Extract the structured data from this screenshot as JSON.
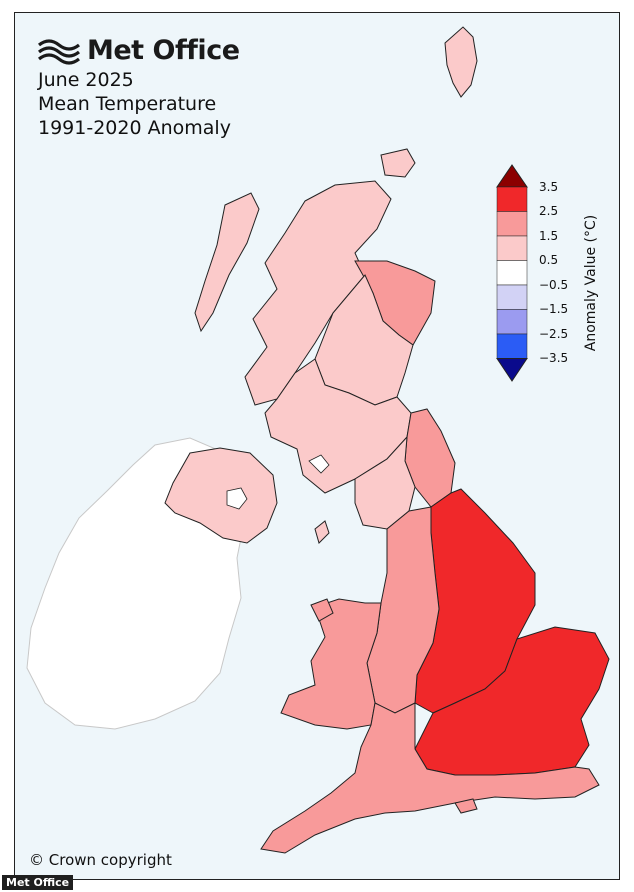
{
  "brand": {
    "name": "Met Office"
  },
  "title": {
    "line1": "June 2025",
    "line2": "Mean Temperature",
    "line3": "1991-2020 Anomaly"
  },
  "legend": {
    "title": "Anomaly Value (°C)",
    "ticks": [
      "3.5",
      "2.5",
      "1.5",
      "0.5",
      "−0.5",
      "−1.5",
      "−2.5",
      "−3.5"
    ],
    "colors": {
      "over": "#8b0000",
      "bin_2_5_to_3_5": "#f0282a",
      "bin_1_5_to_2_5": "#f89a9a",
      "bin_0_5_to_1_5": "#fbcaca",
      "bin_m0_5_to_0_5": "#ffffff",
      "bin_m1_5_to_m0_5": "#d2d2f5",
      "bin_m2_5_to_m1_5": "#9b9bf0",
      "bin_m3_5_to_m2_5": "#2b5cf5",
      "under": "#0a0a8c"
    }
  },
  "map": {
    "sea_color": "#eef6fa",
    "ireland_color": "#ffffff",
    "regions": {
      "n_scotland": "#fbcaca",
      "ne_scotland": "#f89a9a",
      "e_scotland": "#fbcaca",
      "w_scotland": "#fbcaca",
      "n_ireland": "#fbcaca",
      "ne_england": "#f89a9a",
      "nw_england": "#fbcaca",
      "wales": "#f89a9a",
      "midlands": "#f89a9a",
      "e_england": "#f0282a",
      "se_england": "#f0282a",
      "sw_england": "#f89a9a"
    }
  },
  "footer": {
    "copyright": "© Crown copyright",
    "credit": "Met Office"
  }
}
